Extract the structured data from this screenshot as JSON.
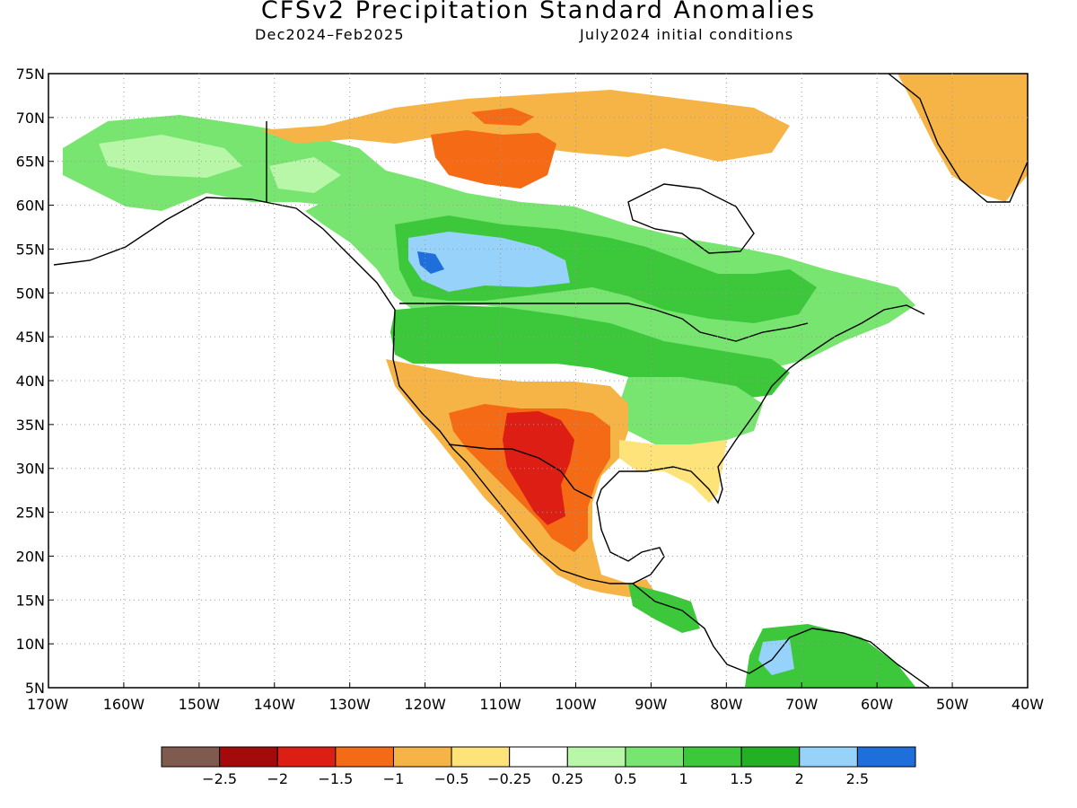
{
  "title": "CFSv2 Precipitation Standard Anomalies",
  "period": "Dec2024–Feb2025",
  "initial_conditions": "July2024 initial conditions",
  "axes": {
    "lat_labels": [
      "75N",
      "70N",
      "65N",
      "60N",
      "55N",
      "50N",
      "45N",
      "40N",
      "35N",
      "30N",
      "25N",
      "20N",
      "15N",
      "10N",
      "5N"
    ],
    "lon_labels": [
      "170W",
      "160W",
      "150W",
      "140W",
      "130W",
      "120W",
      "110W",
      "100W",
      "90W",
      "80W",
      "70W",
      "60W",
      "50W",
      "40W"
    ],
    "lat_range": [
      5,
      75
    ],
    "lon_range": [
      -170,
      -40
    ],
    "grid": "dotted"
  },
  "legend": {
    "colors": [
      "#7f5a4e",
      "#a50a0a",
      "#dc1e14",
      "#f56a14",
      "#f7b446",
      "#fee27a",
      "#ffffff",
      "#b9f7a8",
      "#78e570",
      "#3dc83c",
      "#23b024",
      "#96d2fa",
      "#1e6edc"
    ],
    "tick_labels": [
      "−2.5",
      "−2",
      "−1.5",
      "−1",
      "−0.5",
      "−0.25",
      "0.25",
      "0.5",
      "1",
      "1.5",
      "2",
      "2.5"
    ]
  },
  "regions": [
    {
      "name": "alaska-green",
      "color": "#78e570"
    },
    {
      "name": "alaska-light-green",
      "color": "#b9f7a8"
    },
    {
      "name": "arctic-orange",
      "color": "#f7b446"
    },
    {
      "name": "canada-dark-orange",
      "color": "#f56a14"
    },
    {
      "name": "canada-green",
      "color": "#78e570"
    },
    {
      "name": "canada-medium-green",
      "color": "#3dc83c"
    },
    {
      "name": "prairie-light-blue",
      "color": "#96d2fa"
    },
    {
      "name": "prairie-blue",
      "color": "#1e6edc"
    },
    {
      "name": "northern-us-green",
      "color": "#3dc83c"
    },
    {
      "name": "eastern-us-green",
      "color": "#78e570"
    },
    {
      "name": "sw-orange",
      "color": "#f7b446"
    },
    {
      "name": "sw-dark-orange",
      "color": "#f56a14"
    },
    {
      "name": "sw-red",
      "color": "#dc1e14"
    },
    {
      "name": "southeast-yellow",
      "color": "#fee27a"
    },
    {
      "name": "greenland-orange",
      "color": "#f7b446"
    },
    {
      "name": "central-america-green",
      "color": "#3dc83c"
    },
    {
      "name": "colombia-light-blue",
      "color": "#96d2fa"
    }
  ]
}
